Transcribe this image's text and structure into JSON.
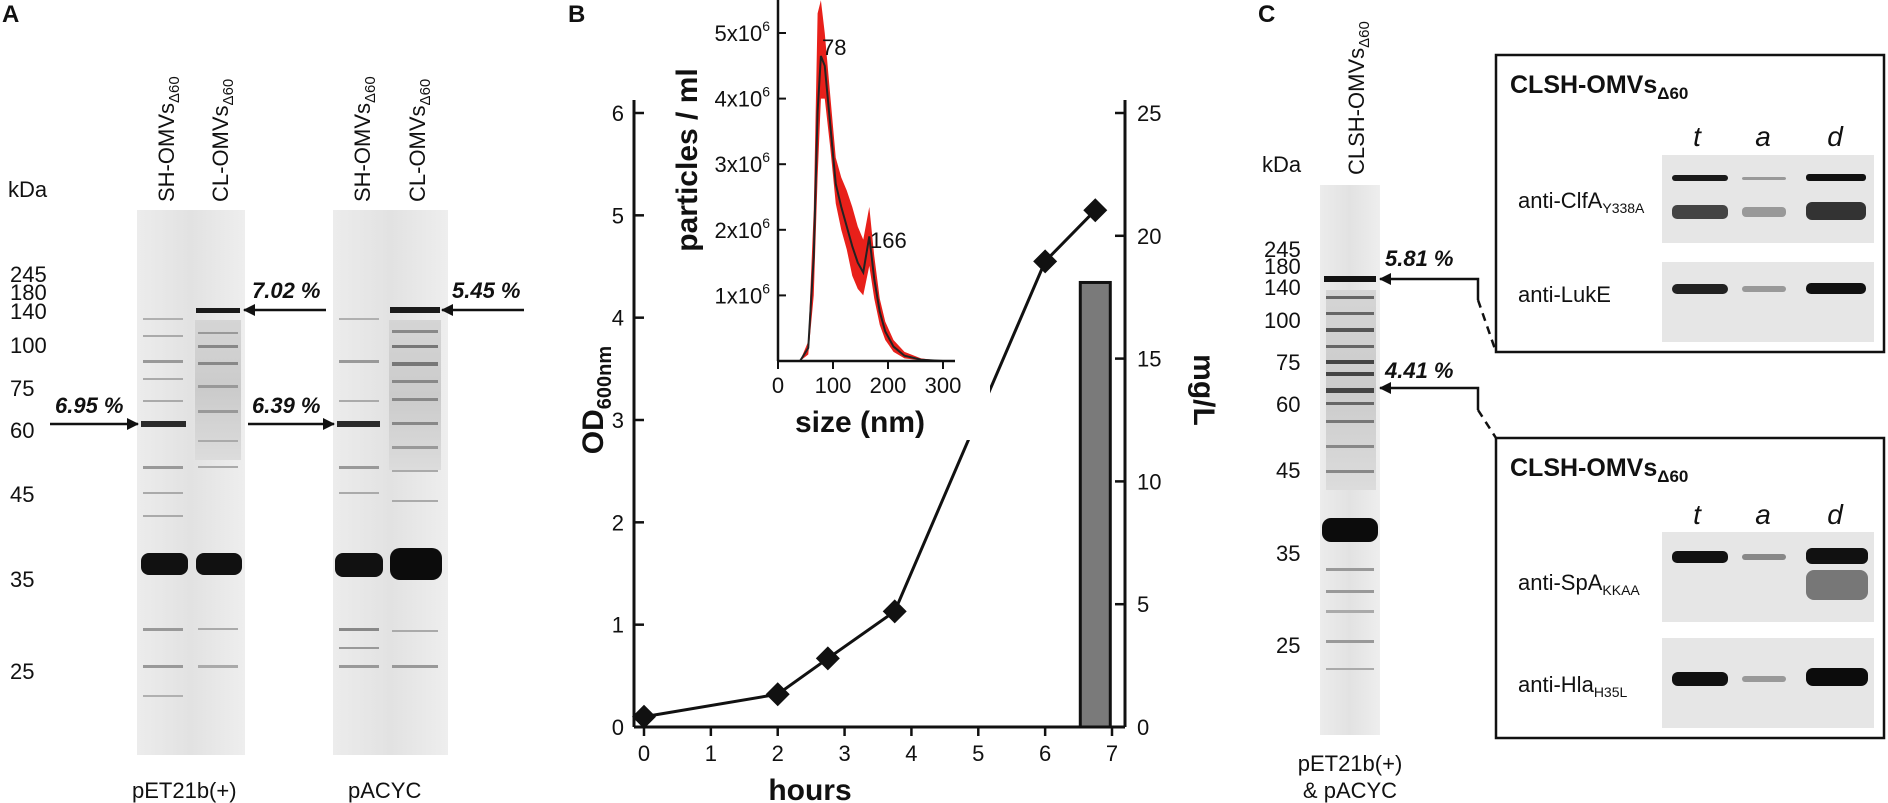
{
  "panels": {
    "a": "A",
    "b": "B",
    "c": "C"
  },
  "panel_a": {
    "kda_label": "kDa",
    "markers": [
      "245",
      "180",
      "140",
      "100",
      "75",
      "60",
      "45",
      "35",
      "25"
    ],
    "lane_labels": [
      "SH-OMVs",
      "CL-OMVs",
      "SH-OMVs",
      "CL-OMVs"
    ],
    "lane_subscript": "Δ60",
    "percent_labels": [
      "6.95 %",
      "7.02 %",
      "6.39 %",
      "5.45 %"
    ],
    "gel_labels": [
      "pET21b(+)",
      "pACYC"
    ]
  },
  "panel_c": {
    "kda_label": "kDa",
    "lane_label": "CLSH-OMVs",
    "lane_subscript": "Δ60",
    "markers": [
      "245",
      "180",
      "140",
      "100",
      "75",
      "60",
      "45",
      "35",
      "25"
    ],
    "percent_labels": [
      "5.81 %",
      "4.41 %"
    ],
    "plasmid_line1": "pET21b(+)",
    "plasmid_line2": "& pACYC",
    "blot_boxes": [
      {
        "title": "CLSH-OMVs",
        "title_subscript": "Δ60",
        "columns": [
          "t",
          "a",
          "d"
        ],
        "rows": [
          {
            "antibody": "anti-ClfA",
            "subscript": "Y338A"
          },
          {
            "antibody": "anti-LukE",
            "subscript": ""
          }
        ]
      },
      {
        "title": "CLSH-OMVs",
        "title_subscript": "Δ60",
        "columns": [
          "t",
          "a",
          "d"
        ],
        "rows": [
          {
            "antibody": "anti-SpA",
            "subscript": "KKAA"
          },
          {
            "antibody": "anti-Hla",
            "subscript": "H35L"
          }
        ]
      }
    ]
  },
  "chart_data": [
    {
      "type": "line",
      "title": "",
      "xlabel": "hours",
      "ylabel": "OD",
      "ylabel_subscript": "600nm",
      "y2label": "mg/L",
      "xlim": [
        0,
        7
      ],
      "ylim": [
        0,
        6
      ],
      "y2lim": [
        0,
        25
      ],
      "x_ticks": [
        "0",
        "1",
        "2",
        "3",
        "4",
        "5",
        "6",
        "7"
      ],
      "y_ticks": [
        "0",
        "1",
        "2",
        "3",
        "4",
        "5",
        "6"
      ],
      "y2_ticks": [
        "0",
        "5",
        "10",
        "15",
        "20",
        "25"
      ],
      "series": [
        {
          "name": "OD600nm",
          "x": [
            0,
            2,
            2.75,
            3.75,
            6,
            6.75
          ],
          "y": [
            0.1,
            0.32,
            0.67,
            1.13,
            4.55,
            5.05
          ]
        }
      ],
      "bars": [
        {
          "name": "mg/L",
          "x": 6.75,
          "value": 18.1
        }
      ]
    },
    {
      "type": "area",
      "title": "",
      "xlabel": "size (nm)",
      "ylabel": "particles / ml",
      "xlim": [
        0,
        300
      ],
      "x_ticks": [
        "0",
        "100",
        "200",
        "300"
      ],
      "y_ticks": [
        {
          "base": "1x10",
          "exp": "6"
        },
        {
          "base": "2x10",
          "exp": "6"
        },
        {
          "base": "3x10",
          "exp": "6"
        },
        {
          "base": "4x10",
          "exp": "6"
        },
        {
          "base": "5x10",
          "exp": "6"
        }
      ],
      "peak_labels": [
        "78",
        "166"
      ],
      "series": [
        {
          "name": "mean",
          "x": [
            0,
            40,
            55,
            65,
            72,
            78,
            85,
            95,
            105,
            115,
            125,
            135,
            145,
            155,
            166,
            175,
            185,
            195,
            210,
            230,
            260,
            300
          ],
          "y": [
            0,
            0,
            0.2,
            1.6,
            3.8,
            4.65,
            4.5,
            3.6,
            2.7,
            2.35,
            2.05,
            1.75,
            1.5,
            1.35,
            1.9,
            1.25,
            0.75,
            0.45,
            0.22,
            0.08,
            0.02,
            0
          ]
        },
        {
          "name": "upper",
          "x": [
            0,
            40,
            55,
            65,
            72,
            78,
            85,
            95,
            105,
            115,
            125,
            135,
            145,
            155,
            166,
            175,
            185,
            195,
            210,
            230,
            260,
            300
          ],
          "y": [
            0,
            0,
            0.3,
            2.3,
            5.3,
            5.5,
            5.0,
            4.05,
            3.1,
            2.8,
            2.6,
            2.35,
            2.05,
            1.85,
            2.35,
            1.6,
            0.95,
            0.6,
            0.32,
            0.14,
            0.04,
            0
          ]
        },
        {
          "name": "lower",
          "x": [
            0,
            40,
            55,
            65,
            72,
            78,
            85,
            95,
            105,
            115,
            125,
            135,
            145,
            155,
            166,
            175,
            185,
            195,
            210,
            230,
            260,
            300
          ],
          "y": [
            0,
            0,
            0.1,
            1.0,
            2.8,
            4.0,
            4.0,
            3.25,
            2.4,
            2.0,
            1.7,
            1.3,
            1.1,
            1.0,
            1.45,
            0.95,
            0.55,
            0.32,
            0.14,
            0.04,
            0.01,
            0
          ]
        }
      ]
    }
  ]
}
